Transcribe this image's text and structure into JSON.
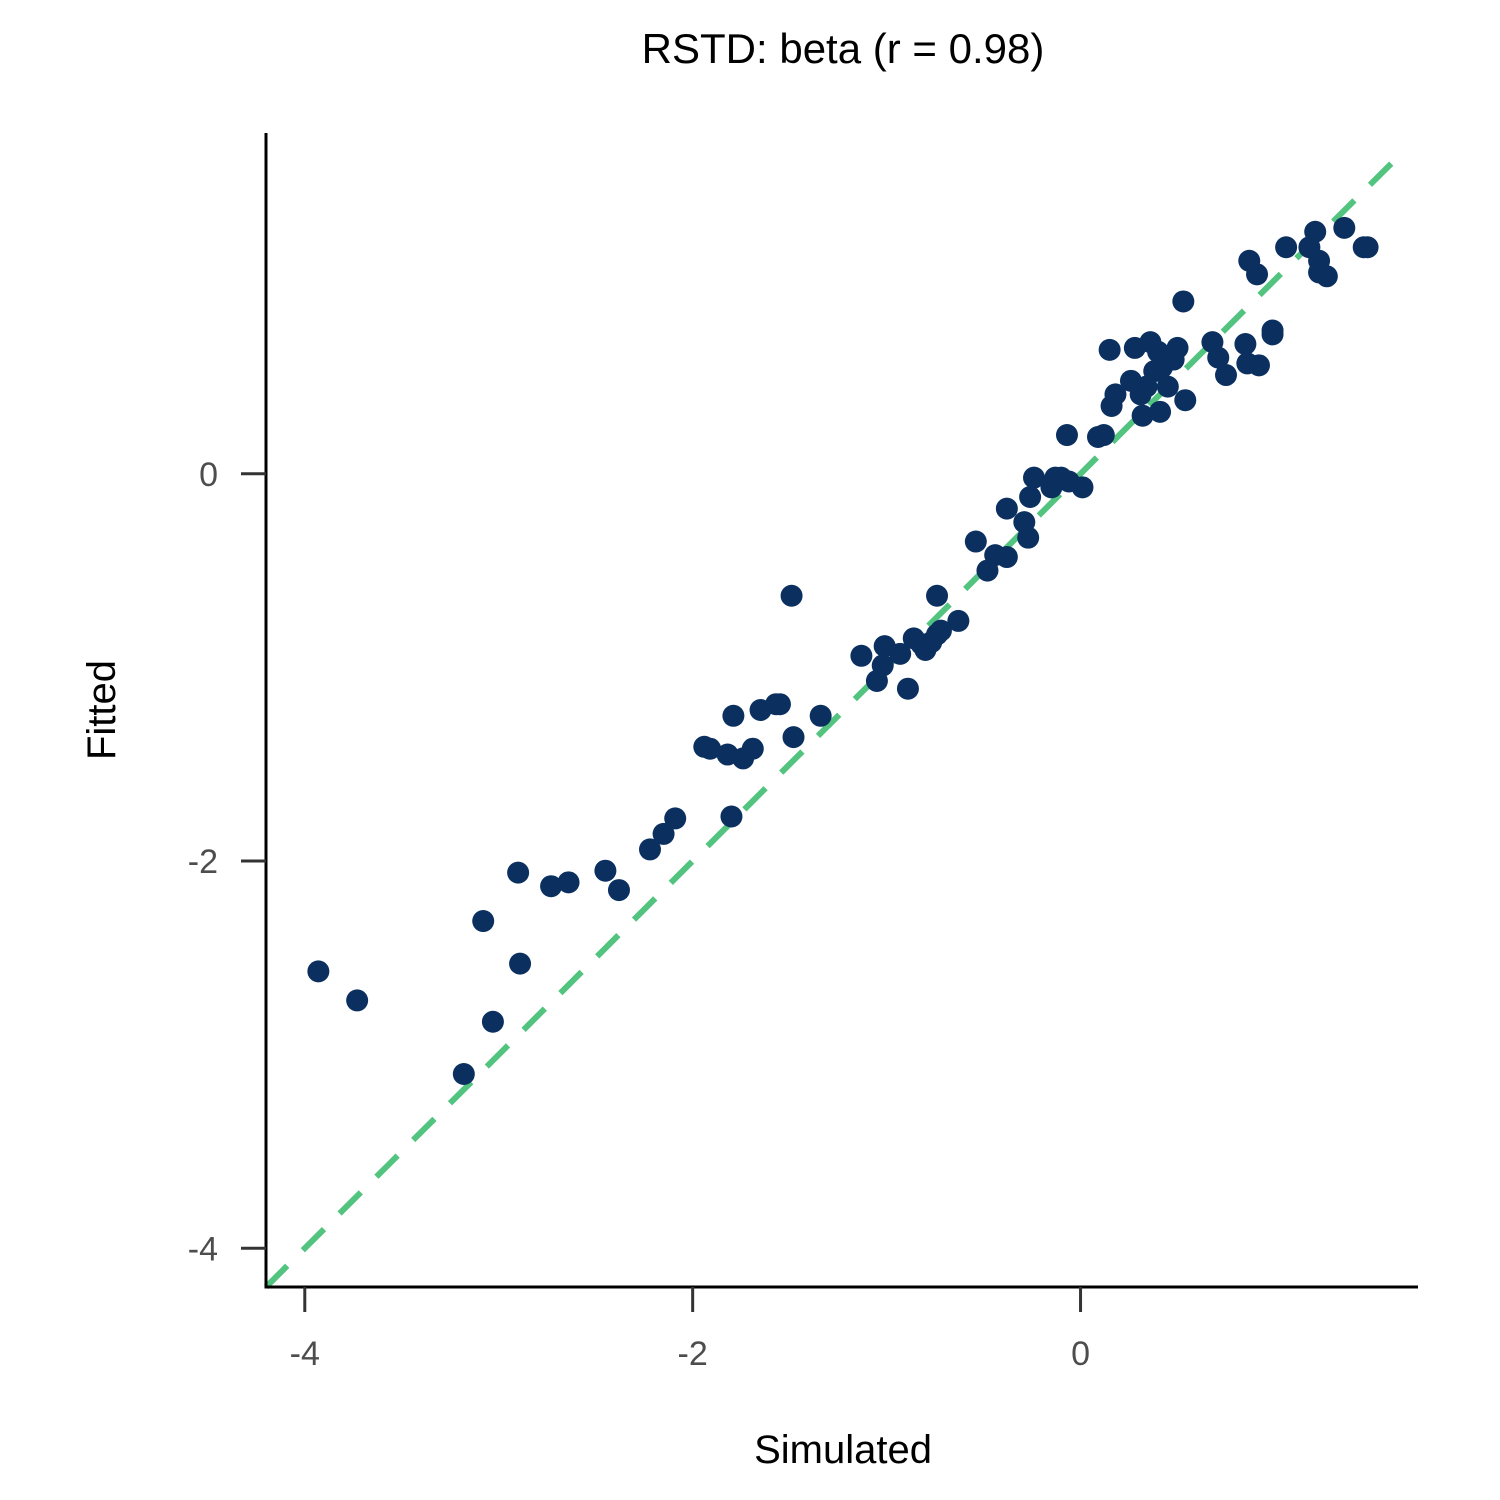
{
  "chart_data": {
    "type": "scatter",
    "title": "RSTD: beta (r = 0.98)",
    "xlabel": "Simulated",
    "ylabel": "Fitted",
    "xlim": [
      -4.2,
      1.74
    ],
    "ylim": [
      -4.2,
      1.76
    ],
    "xticks": [
      -4,
      -2,
      0
    ],
    "yticks": [
      -4,
      -2,
      0
    ],
    "xtick_labels": [
      "-4",
      "-2",
      "0"
    ],
    "ytick_labels": [
      "-4",
      "-2",
      "0"
    ],
    "grid": false,
    "reference_line": {
      "type": "identity",
      "style": "dashed",
      "color": "#52c47f"
    },
    "point_color": "#0b3060",
    "points": [
      [
        -3.93,
        -2.57
      ],
      [
        -3.73,
        -2.72
      ],
      [
        -3.18,
        -3.1
      ],
      [
        -3.03,
        -2.83
      ],
      [
        -3.08,
        -2.31
      ],
      [
        -2.89,
        -2.53
      ],
      [
        -2.9,
        -2.06
      ],
      [
        -2.73,
        -2.13
      ],
      [
        -2.64,
        -2.11
      ],
      [
        -2.45,
        -2.05
      ],
      [
        -2.38,
        -2.15
      ],
      [
        -2.22,
        -1.94
      ],
      [
        -2.15,
        -1.86
      ],
      [
        -2.09,
        -1.78
      ],
      [
        -1.8,
        -1.77
      ],
      [
        -1.94,
        -1.41
      ],
      [
        -1.91,
        -1.42
      ],
      [
        -1.82,
        -1.45
      ],
      [
        -1.74,
        -1.47
      ],
      [
        -1.69,
        -1.42
      ],
      [
        -1.79,
        -1.25
      ],
      [
        -1.65,
        -1.22
      ],
      [
        -1.57,
        -1.19
      ],
      [
        -1.55,
        -1.19
      ],
      [
        -1.48,
        -1.36
      ],
      [
        -1.49,
        -0.63
      ],
      [
        -1.34,
        -1.25
      ],
      [
        -1.13,
        -0.94
      ],
      [
        -1.05,
        -1.07
      ],
      [
        -1.02,
        -0.99
      ],
      [
        -1.01,
        -0.89
      ],
      [
        -0.93,
        -0.93
      ],
      [
        -0.89,
        -1.11
      ],
      [
        -0.86,
        -0.85
      ],
      [
        -0.82,
        -0.88
      ],
      [
        -0.8,
        -0.91
      ],
      [
        -0.77,
        -0.87
      ],
      [
        -0.74,
        -0.83
      ],
      [
        -0.72,
        -0.81
      ],
      [
        -0.74,
        -0.63
      ],
      [
        -0.63,
        -0.76
      ],
      [
        -0.54,
        -0.35
      ],
      [
        -0.48,
        -0.5
      ],
      [
        -0.44,
        -0.42
      ],
      [
        -0.38,
        -0.43
      ],
      [
        -0.38,
        -0.18
      ],
      [
        -0.29,
        -0.25
      ],
      [
        -0.27,
        -0.33
      ],
      [
        -0.26,
        -0.12
      ],
      [
        -0.24,
        -0.02
      ],
      [
        -0.15,
        -0.07
      ],
      [
        -0.13,
        -0.02
      ],
      [
        -0.1,
        -0.02
      ],
      [
        -0.06,
        -0.04
      ],
      [
        0.01,
        -0.07
      ],
      [
        -0.07,
        0.2
      ],
      [
        0.09,
        0.19
      ],
      [
        0.12,
        0.2
      ],
      [
        0.16,
        0.35
      ],
      [
        0.18,
        0.41
      ],
      [
        0.15,
        0.64
      ],
      [
        0.26,
        0.48
      ],
      [
        0.28,
        0.65
      ],
      [
        0.31,
        0.41
      ],
      [
        0.32,
        0.3
      ],
      [
        0.34,
        0.45
      ],
      [
        0.36,
        0.68
      ],
      [
        0.38,
        0.53
      ],
      [
        0.4,
        0.63
      ],
      [
        0.42,
        0.55
      ],
      [
        0.41,
        0.32
      ],
      [
        0.45,
        0.45
      ],
      [
        0.48,
        0.59
      ],
      [
        0.5,
        0.65
      ],
      [
        0.54,
        0.38
      ],
      [
        0.53,
        0.89
      ],
      [
        0.68,
        0.68
      ],
      [
        0.71,
        0.6
      ],
      [
        0.75,
        0.51
      ],
      [
        0.85,
        0.67
      ],
      [
        0.86,
        0.57
      ],
      [
        0.92,
        0.56
      ],
      [
        0.99,
        0.74
      ],
      [
        0.99,
        0.72
      ],
      [
        0.87,
        1.1
      ],
      [
        0.91,
        1.03
      ],
      [
        1.06,
        1.17
      ],
      [
        1.18,
        1.17
      ],
      [
        1.21,
        1.25
      ],
      [
        1.23,
        1.1
      ],
      [
        1.23,
        1.04
      ],
      [
        1.27,
        1.02
      ],
      [
        1.36,
        1.27
      ],
      [
        1.46,
        1.17
      ],
      [
        1.48,
        1.17
      ]
    ]
  }
}
